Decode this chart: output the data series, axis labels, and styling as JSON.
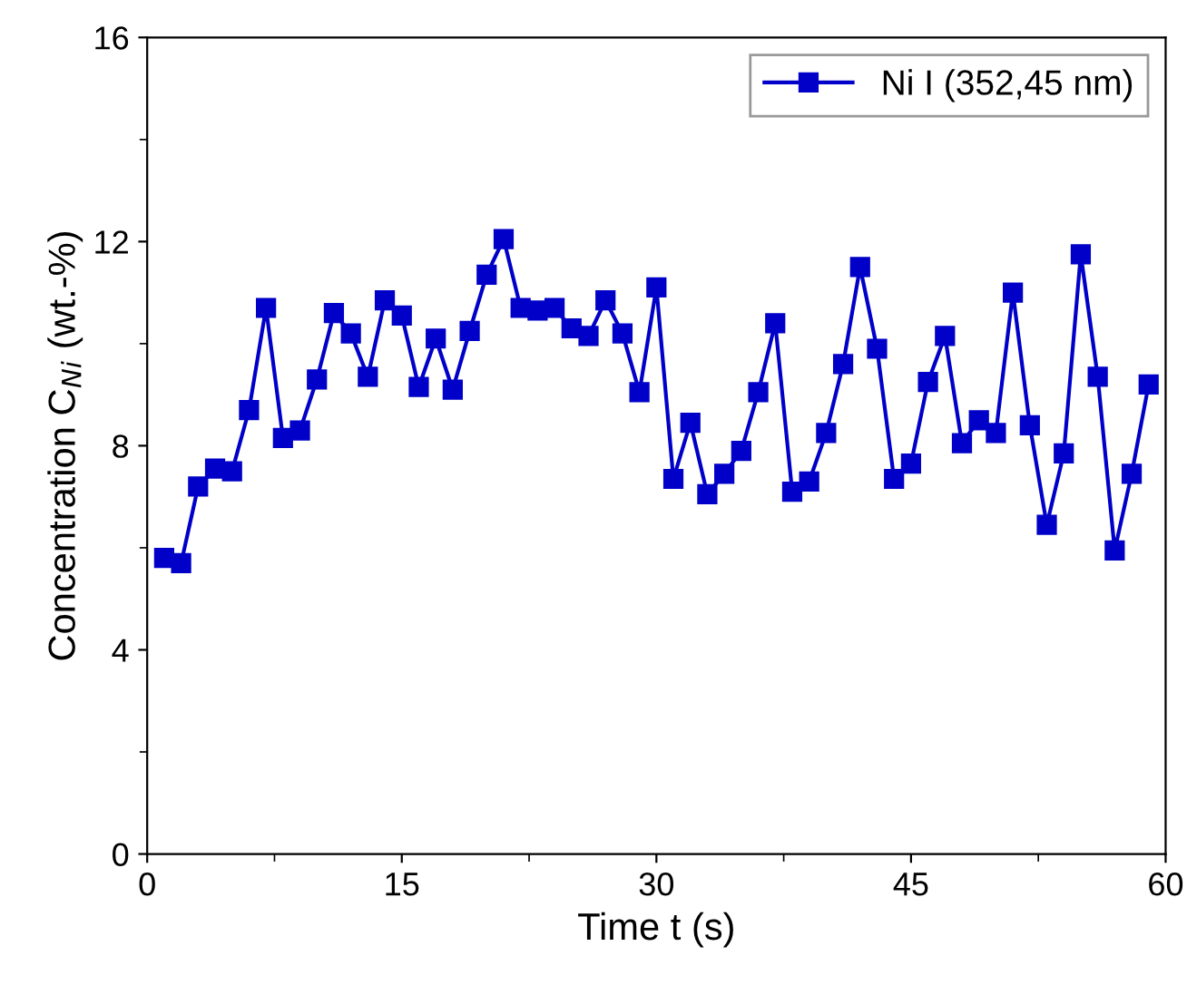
{
  "chart_data": {
    "type": "line",
    "xlabel": "Time t (s)",
    "ylabel": "Concentration C$_{Ni}$ (wt.-%)",
    "x": [
      1,
      2,
      3,
      4,
      5,
      6,
      7,
      8,
      9,
      10,
      11,
      12,
      13,
      14,
      15,
      16,
      17,
      18,
      19,
      20,
      21,
      22,
      23,
      24,
      25,
      26,
      27,
      28,
      29,
      30,
      31,
      32,
      33,
      34,
      35,
      36,
      37,
      38,
      39,
      40,
      41,
      42,
      43,
      44,
      45,
      46,
      47,
      48,
      49,
      50,
      51,
      52,
      53,
      54,
      55,
      56,
      57,
      58,
      59
    ],
    "series": [
      {
        "name": "Ni I (352,45 nm)",
        "color": "#0000c8",
        "values": [
          5.8,
          5.7,
          7.2,
          7.55,
          7.5,
          8.7,
          10.7,
          8.15,
          8.3,
          9.3,
          10.6,
          10.2,
          9.35,
          10.85,
          10.55,
          9.15,
          10.1,
          9.1,
          10.25,
          11.35,
          12.05,
          10.7,
          10.65,
          10.7,
          10.3,
          10.15,
          10.85,
          10.2,
          9.05,
          11.1,
          7.35,
          8.45,
          7.05,
          7.45,
          7.9,
          9.05,
          10.4,
          7.1,
          7.3,
          8.25,
          9.6,
          11.5,
          9.9,
          7.35,
          7.65,
          9.25,
          10.15,
          8.05,
          8.5,
          8.25,
          11.0,
          8.4,
          6.45,
          7.85,
          11.75,
          9.35,
          5.95,
          7.45,
          9.2
        ]
      }
    ],
    "xlim": [
      0,
      60
    ],
    "xticks": [
      0,
      15,
      30,
      45,
      60
    ],
    "ylim": [
      0,
      16
    ],
    "yticks": [
      0,
      4,
      8,
      12,
      16
    ],
    "marker": "square",
    "line_style": "solid",
    "legend": "top right",
    "grid": false
  }
}
